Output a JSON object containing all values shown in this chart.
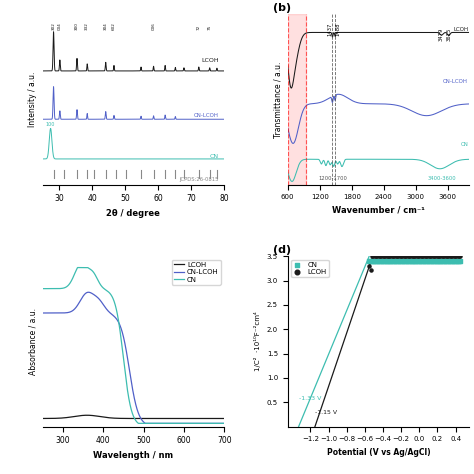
{
  "colors": {
    "LCOH": "#1a1a1a",
    "CN_LCOH": "#5060c8",
    "CN": "#3dbdb0",
    "JCPDS": "#888888"
  },
  "xrd_xlabel": "2θ / degree",
  "ftir_xlabel": "Wavenumber / cm⁻¹",
  "uv_xlabel": "Wavelength / nm",
  "mott_xlabel": "Potential (V vs Ag/AgCl)",
  "mott_ylabel": "1/C²  (10¹⁰F⁻²cm⁴)",
  "panel_b": "(b)",
  "panel_d": "(d)"
}
